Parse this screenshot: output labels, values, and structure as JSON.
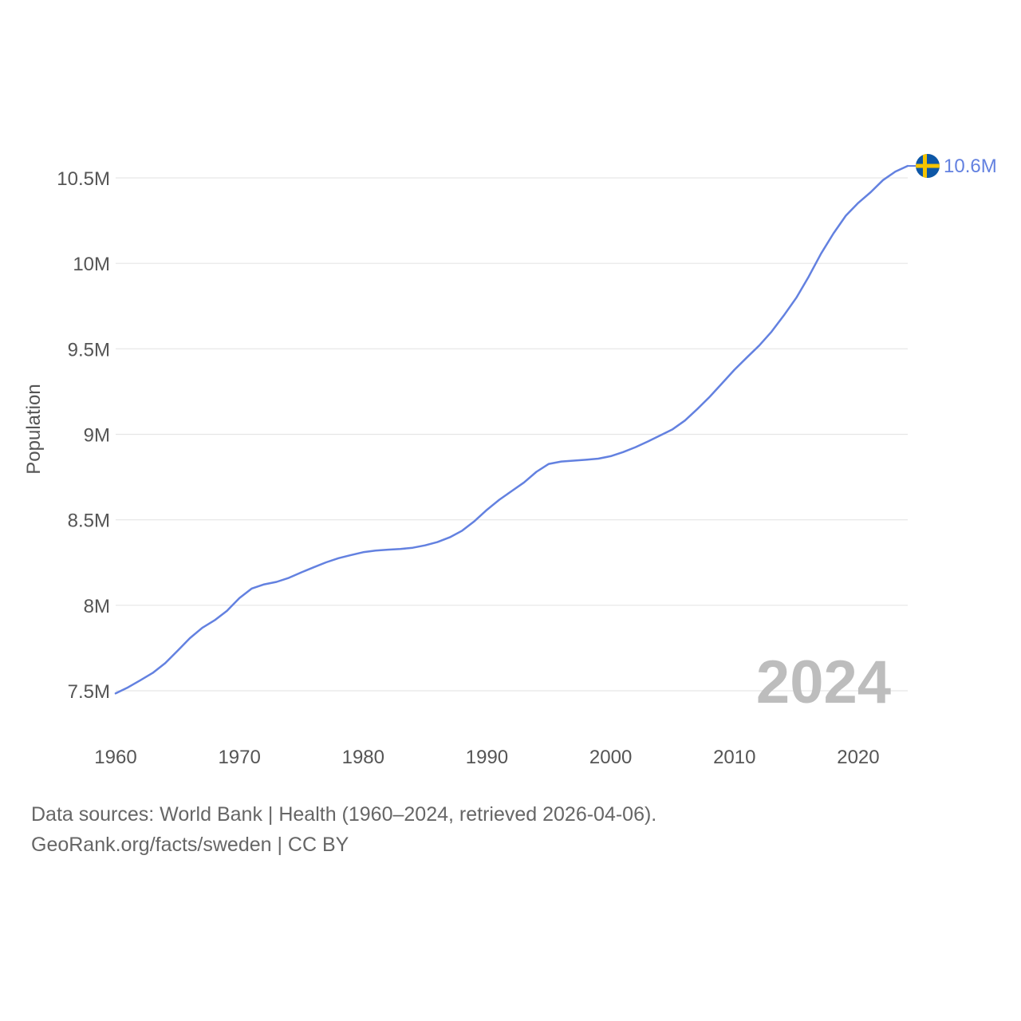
{
  "chart_data": {
    "type": "line",
    "title": "",
    "xlabel": "",
    "ylabel": "Population",
    "xlim": [
      1960,
      2024
    ],
    "ylim": [
      7250000,
      10800000
    ],
    "x_ticks": [
      1960,
      1970,
      1980,
      1990,
      2000,
      2010,
      2020
    ],
    "x_tick_labels": [
      "1960",
      "1970",
      "1980",
      "1990",
      "2000",
      "2010",
      "2020"
    ],
    "y_ticks": [
      7500000,
      8000000,
      8500000,
      9000000,
      9500000,
      10000000,
      10500000
    ],
    "y_tick_labels": [
      "7.5M",
      "8M",
      "8.5M",
      "9M",
      "9.5M",
      "10M",
      "10.5M"
    ],
    "grid": true,
    "current_year_label": "2024",
    "series": [
      {
        "name": "Sweden",
        "color": "#6381e0",
        "end_label": "10.6M",
        "flag": "sweden-flag-icon",
        "x": [
          1960,
          1961,
          1962,
          1963,
          1964,
          1965,
          1966,
          1967,
          1968,
          1969,
          1970,
          1971,
          1972,
          1973,
          1974,
          1975,
          1976,
          1977,
          1978,
          1979,
          1980,
          1981,
          1982,
          1983,
          1984,
          1985,
          1986,
          1987,
          1988,
          1989,
          1990,
          1991,
          1992,
          1993,
          1994,
          1995,
          1996,
          1997,
          1998,
          1999,
          2000,
          2001,
          2002,
          2003,
          2004,
          2005,
          2006,
          2007,
          2008,
          2009,
          2010,
          2011,
          2012,
          2013,
          2014,
          2015,
          2016,
          2017,
          2018,
          2019,
          2020,
          2021,
          2022,
          2023,
          2024
        ],
        "values": [
          7484656,
          7519998,
          7561588,
          7604328,
          7661354,
          7733853,
          7807797,
          7867931,
          7912273,
          7968072,
          8042801,
          8098334,
          8122293,
          8136875,
          8160560,
          8192566,
          8222311,
          8251162,
          8275333,
          8293678,
          8310531,
          8320436,
          8325263,
          8329033,
          8336605,
          8350386,
          8369829,
          8397804,
          8436489,
          8492964,
          8558835,
          8617375,
          8668067,
          8718561,
          8780745,
          8826939,
          8840998,
          8846062,
          8850974,
          8857874,
          8872109,
          8895960,
          8924958,
          8958229,
          8993531,
          9029572,
          9080505,
          9148092,
          9219637,
          9298515,
          9378126,
          9449213,
          9519374,
          9600379,
          9696110,
          9799186,
          9923085,
          10057698,
          10175214,
          10278887,
          10353442,
          10415811,
          10486941,
          10536632,
          10570000
        ]
      }
    ]
  },
  "footer": {
    "line1": "Data sources: World Bank | Health (1960–2024, retrieved 2026-04-06).",
    "line2": "GeoRank.org/facts/sweden | CC BY"
  },
  "colors": {
    "line": "#6381e0",
    "grid": "#e6e6e6",
    "axis_text": "#555555",
    "year_text": "#bdbdbd",
    "flag_blue": "#0d57a6",
    "flag_yellow": "#f5c400"
  }
}
